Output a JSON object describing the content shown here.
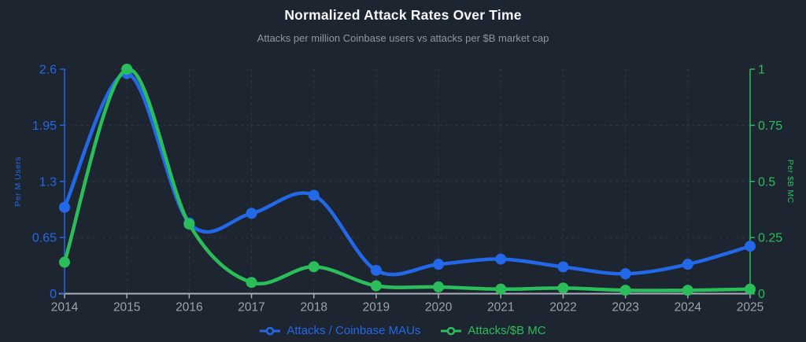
{
  "header": {
    "title": "Normalized Attack Rates Over Time",
    "subtitle": "Attacks per million Coinbase users vs attacks per $B market cap"
  },
  "colors": {
    "background": "#1d2530",
    "blue": "#2368e8",
    "green": "#2cbd5b",
    "grid": "rgba(170,185,205,0.14)",
    "axis_gray": "#9ba3ae",
    "x_axis_line": "#a9aeb8",
    "title": "#f5f7fa",
    "subtitle": "#8f97a3"
  },
  "chart_data": {
    "type": "line",
    "x": [
      2014,
      2015,
      2016,
      2017,
      2018,
      2019,
      2020,
      2021,
      2022,
      2023,
      2024,
      2025
    ],
    "x_tick_labels": [
      "2014",
      "2015",
      "2016",
      "2017",
      "2018",
      "2019",
      "2020",
      "2021",
      "2022",
      "2023",
      "2024",
      "2025"
    ],
    "series": [
      {
        "name": "Attacks / Coinbase MAUs",
        "axis": "left",
        "color": "#2368e8",
        "values": [
          1.0,
          2.55,
          0.82,
          0.93,
          1.14,
          0.27,
          0.34,
          0.4,
          0.31,
          0.23,
          0.34,
          0.55
        ]
      },
      {
        "name": "Attacks/$B MC",
        "axis": "right",
        "color": "#2cbd5b",
        "values": [
          0.14,
          1.0,
          0.31,
          0.05,
          0.12,
          0.035,
          0.03,
          0.02,
          0.025,
          0.015,
          0.015,
          0.02
        ]
      }
    ],
    "left_axis": {
      "label": "Per M Users",
      "range": [
        0,
        2.6
      ],
      "ticks": [
        0,
        0.65,
        1.3,
        1.95,
        2.6
      ],
      "tick_labels": [
        "0",
        "0.65",
        "1.3",
        "1.95",
        "2.6"
      ],
      "color": "#2368e8"
    },
    "right_axis": {
      "label": "Per $B MC",
      "range": [
        0,
        1
      ],
      "ticks": [
        0,
        0.25,
        0.5,
        0.75,
        1
      ],
      "tick_labels": [
        "0",
        "0.25",
        "0.5",
        "0.75",
        "1"
      ],
      "color": "#2cbd5b"
    },
    "grid": true,
    "legend_position": "bottom",
    "title": "Normalized Attack Rates Over Time",
    "subtitle": "Attacks per million Coinbase users vs attacks per $B market cap"
  },
  "legend": {
    "items": [
      {
        "label": "Attacks / Coinbase MAUs",
        "color": "#2368e8"
      },
      {
        "label": "Attacks/$B MC",
        "color": "#2cbd5b"
      }
    ]
  }
}
